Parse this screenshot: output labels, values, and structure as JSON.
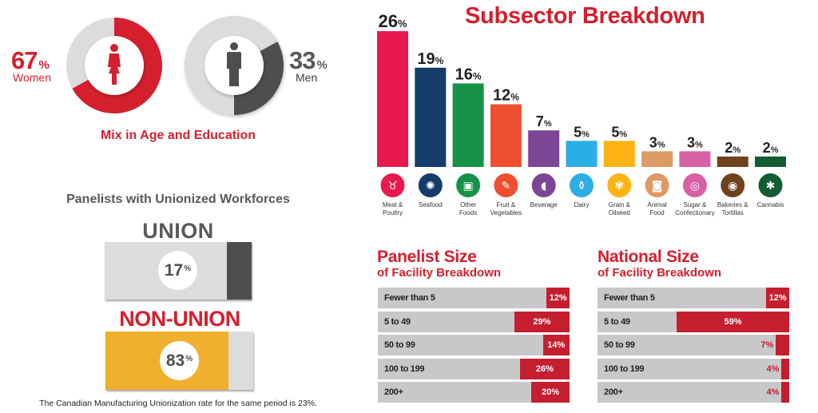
{
  "colors": {
    "brand_red": "#d41f2e",
    "dark_gray": "#4d4e50",
    "light_gray": "#dcdcdc",
    "yellow": "#f0b02e",
    "table_bg": "#c8c8ca",
    "table_fill": "#c41e2f"
  },
  "gender": {
    "title": "Mix in Age and Education",
    "women": {
      "value": "67",
      "pct_sign": "%",
      "label": "Women",
      "icon": "woman-icon"
    },
    "men": {
      "value": "33",
      "pct_sign": "%",
      "label": "Men",
      "icon": "man-icon"
    }
  },
  "union": {
    "title": "Panelists with Unionized Workforces",
    "union_label": "UNION",
    "union_value": "17",
    "nonunion_label": "NON-UNION",
    "nonunion_value": "83",
    "pct_sign": "%",
    "footnote": "The Canadian Manufacturing Unionization rate for the same period is 23%."
  },
  "panelist_table": {
    "title_line1": "Panelist Size",
    "title_line2": "of Facility Breakdown",
    "rows": [
      {
        "label": "Fewer than 5",
        "value": 12,
        "text": "12%"
      },
      {
        "label": "5 to 49",
        "value": 29,
        "text": "29%"
      },
      {
        "label": "50 to 99",
        "value": 14,
        "text": "14%"
      },
      {
        "label": "100 to 199",
        "value": 26,
        "text": "26%"
      },
      {
        "label": "200+",
        "value": 20,
        "text": "20%"
      }
    ]
  },
  "national_table": {
    "title_line1": "National Size",
    "title_line2": "of Facility Breakdown",
    "rows": [
      {
        "label": "Fewer than 5",
        "value": 12,
        "text": "12%"
      },
      {
        "label": "5 to 49",
        "value": 59,
        "text": "59%"
      },
      {
        "label": "50 to 99",
        "value": 7,
        "text": "7%"
      },
      {
        "label": "100 to 199",
        "value": 4,
        "text": "4%"
      },
      {
        "label": "200+",
        "value": 4,
        "text": "4%"
      }
    ]
  },
  "chart_data": [
    {
      "type": "pie",
      "title": "Mix in Age and Education",
      "categories": [
        "Women",
        "Men"
      ],
      "values": [
        67,
        33
      ],
      "unit": "%"
    },
    {
      "type": "bar",
      "title": "Subsector Breakdown",
      "xlabel": "",
      "ylabel": "",
      "ylim": [
        0,
        26
      ],
      "grid": false,
      "categories": [
        [
          "Meat &",
          "Poultry"
        ],
        [
          "Seafood"
        ],
        [
          "Other",
          "Foods"
        ],
        [
          "Fruit &",
          "Vegetables"
        ],
        [
          "Beverage"
        ],
        [
          "Dairy"
        ],
        [
          "Grain &",
          "Oilseed"
        ],
        [
          "Animal",
          "Food"
        ],
        [
          "Sugar &",
          "Confectionary"
        ],
        [
          "Bakeries &",
          "Tortillas"
        ],
        [
          "Cannabis"
        ]
      ],
      "values": [
        26,
        19,
        16,
        12,
        7,
        5,
        5,
        3,
        3,
        2,
        2
      ],
      "colors": [
        "#e8194e",
        "#143d6b",
        "#169248",
        "#ee4f31",
        "#7d4595",
        "#2aaee3",
        "#fbb316",
        "#dc9a64",
        "#d761a5",
        "#6e431c",
        "#115c30"
      ],
      "icons": [
        "cow-icon",
        "crab-icon",
        "package-icon",
        "carrot-icon",
        "can-icon",
        "milk-carton-icon",
        "wheat-icon",
        "pet-food-bag-icon",
        "lollipop-icon",
        "bagel-icon",
        "cannabis-leaf-icon"
      ],
      "icon_glyphs": [
        "♉",
        "✺",
        "▣",
        "✎",
        "◖",
        "⚱",
        "✾",
        "◙",
        "◎",
        "◉",
        "✱"
      ],
      "unit": "%"
    },
    {
      "type": "bar",
      "title": "Panelists with Unionized Workforces",
      "categories": [
        "UNION",
        "NON-UNION"
      ],
      "values": [
        17,
        83
      ],
      "unit": "%"
    },
    {
      "type": "table",
      "title": "Panelist Size of Facility Breakdown",
      "categories": [
        "Fewer than 5",
        "5 to 49",
        "50 to 99",
        "100 to 199",
        "200+"
      ],
      "values": [
        12,
        29,
        14,
        26,
        20
      ],
      "unit": "%"
    },
    {
      "type": "table",
      "title": "National Size of Facility Breakdown",
      "categories": [
        "Fewer than 5",
        "5 to 49",
        "50 to 99",
        "100 to 199",
        "200+"
      ],
      "values": [
        12,
        59,
        7,
        4,
        4
      ],
      "unit": "%"
    }
  ]
}
